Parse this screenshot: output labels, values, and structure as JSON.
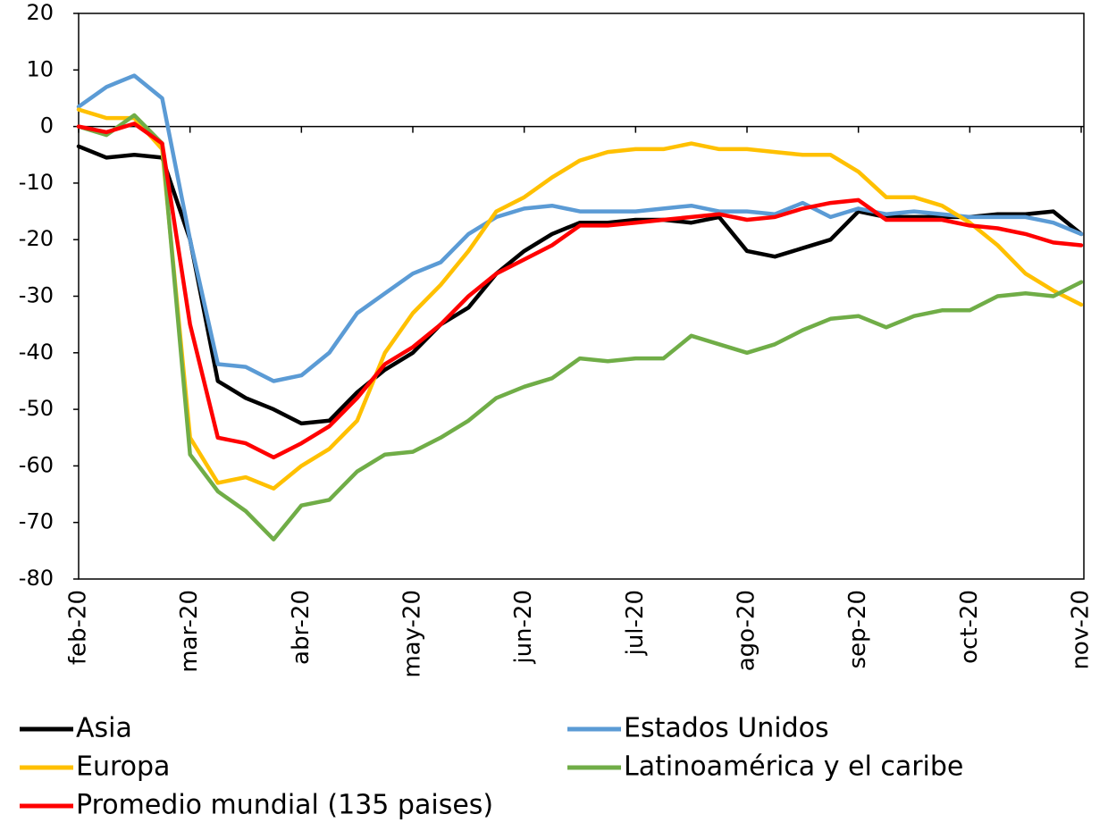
{
  "chart_data": {
    "type": "line",
    "categories": [
      "feb-20",
      null,
      null,
      null,
      "mar-20",
      null,
      null,
      null,
      "abr-20",
      null,
      null,
      null,
      "may-20",
      null,
      null,
      null,
      "jun-20",
      null,
      null,
      null,
      "jul-20",
      null,
      null,
      null,
      "ago-20",
      null,
      null,
      null,
      "sep-20",
      null,
      null,
      null,
      "oct-20",
      null,
      null,
      null,
      "nov-20"
    ],
    "series": [
      {
        "name": "Asia",
        "color": "#000000",
        "values": [
          -3.5,
          -5.5,
          -5,
          -5.5,
          -20,
          -45,
          -48,
          -50,
          -52.5,
          -52,
          -47,
          -43,
          -40,
          -35,
          -32,
          -26,
          -22,
          -19,
          -17,
          -17,
          -16.5,
          -16.5,
          -17,
          -16,
          -22,
          -23,
          -21.5,
          -20,
          -15,
          -16,
          -16,
          -16,
          -16,
          -15.5,
          -15.5,
          -15,
          -19
        ]
      },
      {
        "name": "Estados Unidos",
        "color": "#5b9bd5",
        "values": [
          3.5,
          7,
          9,
          5,
          -20,
          -42,
          -42.5,
          -45,
          -44,
          -40,
          -33,
          -29.5,
          -26,
          -24,
          -19,
          -16,
          -14.5,
          -14,
          -15,
          -15,
          -15,
          -14.5,
          -14,
          -15,
          -15,
          -15.5,
          -13.5,
          -16,
          -14.5,
          -15.5,
          -15,
          -15.5,
          -16,
          -16,
          -16,
          -17,
          -19
        ]
      },
      {
        "name": "Europa",
        "color": "#ffc000",
        "values": [
          3,
          1.5,
          1.5,
          -4,
          -55,
          -63,
          -62,
          -64,
          -60,
          -57,
          -52,
          -40,
          -33,
          -28,
          -22,
          -15,
          -12.5,
          -9,
          -6,
          -4.5,
          -4,
          -4,
          -3,
          -4,
          -4,
          -4.5,
          -5,
          -5,
          -8,
          -12.5,
          -12.5,
          -14,
          -17,
          -21,
          -26,
          -29,
          -31.5
        ]
      },
      {
        "name": "Latinoamérica y el caribe",
        "color": "#70ad47",
        "values": [
          0,
          -1.5,
          2,
          -3,
          -58,
          -64.5,
          -68,
          -73,
          -67,
          -66,
          -61,
          -58,
          -57.5,
          -55,
          -52,
          -48,
          -46,
          -44.5,
          -41,
          -41.5,
          -41,
          -41,
          -37,
          -38.5,
          -40,
          -38.5,
          -36,
          -34,
          -33.5,
          -35.5,
          -33.5,
          -32.5,
          -32.5,
          -30,
          -29.5,
          -30,
          -27.5
        ]
      },
      {
        "name": "Promedio mundial (135 paises)",
        "color": "#ff0000",
        "values": [
          0,
          -1,
          0.5,
          -3,
          -35,
          -55,
          -56,
          -58.5,
          -56,
          -53,
          -48,
          -42,
          -39,
          -35,
          -30,
          -26,
          -23.5,
          -21,
          -17.5,
          -17.5,
          -17,
          -16.5,
          -16,
          -15.5,
          -16.5,
          -16,
          -14.5,
          -13.5,
          -13,
          -16.5,
          -16.5,
          -16.5,
          -17.5,
          -18,
          -19,
          -20.5,
          -21
        ]
      }
    ],
    "ylim": [
      -80,
      20
    ],
    "yticks": [
      -80,
      -70,
      -60,
      -50,
      -40,
      -30,
      -20,
      -10,
      0,
      10,
      20
    ],
    "legend": "bottom"
  }
}
